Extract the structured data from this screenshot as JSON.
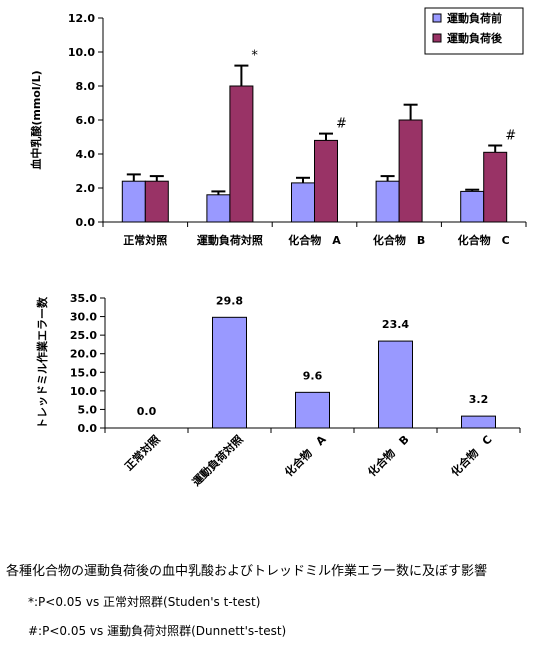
{
  "chart_data": [
    {
      "type": "bar",
      "ylabel": "血中乳酸(mmol/L)",
      "ylim": [
        0,
        12
      ],
      "yticks": [
        "0.0",
        "2.0",
        "4.0",
        "6.0",
        "8.0",
        "10.0",
        "12.0"
      ],
      "categories": [
        "正常対照",
        "運動負荷対照",
        "化合物　A",
        "化合物　B",
        "化合物　C"
      ],
      "legend_position": "top-right",
      "series": [
        {
          "name": "運動負荷前",
          "color": "#9999ff",
          "values": [
            2.4,
            1.6,
            2.3,
            2.4,
            1.8
          ],
          "errors": [
            0.4,
            0.2,
            0.3,
            0.3,
            0.1
          ]
        },
        {
          "name": "運動負荷後",
          "color": "#993366",
          "values": [
            2.4,
            8.0,
            4.8,
            6.0,
            4.1
          ],
          "errors": [
            0.3,
            1.2,
            0.4,
            0.9,
            0.4
          ]
        }
      ],
      "annotations": [
        {
          "category": "運動負荷対照",
          "series": "運動負荷後",
          "text": "*"
        },
        {
          "category": "化合物　A",
          "series": "運動負荷後",
          "text": "#"
        },
        {
          "category": "化合物　C",
          "series": "運動負荷後",
          "text": "#"
        }
      ]
    },
    {
      "type": "bar",
      "ylabel": "トレッドミル作業エラー数",
      "ylim": [
        0,
        35
      ],
      "yticks": [
        "0.0",
        "5.0",
        "10.0",
        "15.0",
        "20.0",
        "25.0",
        "30.0",
        "35.0"
      ],
      "categories": [
        "正常対照",
        "運動負荷対照",
        "化合物　A",
        "化合物　B",
        "化合物　C"
      ],
      "color": "#9999ff",
      "values": [
        0.0,
        29.8,
        9.6,
        23.4,
        3.2
      ],
      "data_labels": [
        "0.0",
        "29.8",
        "9.6",
        "23.4",
        "3.2"
      ]
    }
  ],
  "caption": {
    "title": "各種化合物の運動負荷後の血中乳酸およびトレッドミル作業エラー数に及ぼす影響",
    "note1": "*:P<0.05 vs 正常対照群(Studen's t-test)",
    "note2": "#:P<0.05 vs 運動負荷対照群(Dunnett's-test)"
  }
}
